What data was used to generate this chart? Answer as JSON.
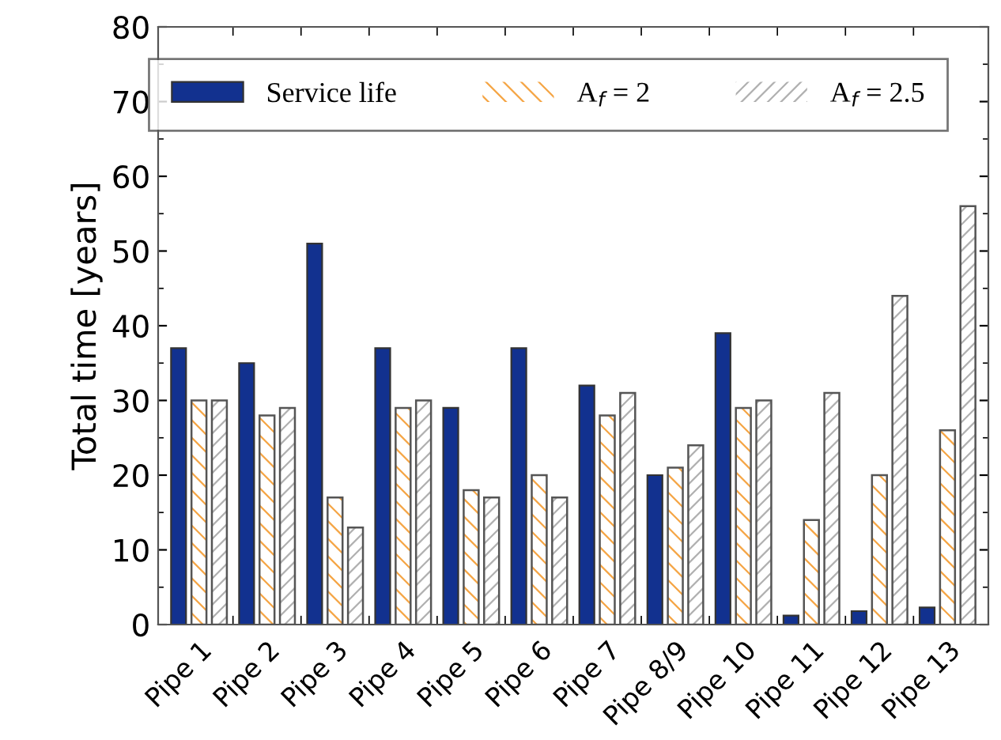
{
  "chart_data": {
    "type": "bar",
    "ylabel": "Total time [years]",
    "categories": [
      "Pipe 1",
      "Pipe 2",
      "Pipe 3",
      "Pipe 4",
      "Pipe 5",
      "Pipe 6",
      "Pipe 7",
      "Pipe 8/9",
      "Pipe 10",
      "Pipe 11",
      "Pipe 12",
      "Pipe 13"
    ],
    "series": [
      {
        "name": "Service life",
        "color": "#12318f",
        "values": [
          37,
          35,
          51,
          37,
          29,
          37,
          32,
          20,
          39,
          1.2,
          1.8,
          2.3
        ]
      },
      {
        "name": "A$_{f}$ = 2",
        "color": "#f5a544",
        "values": [
          30,
          28,
          17,
          29,
          18,
          20,
          28,
          21,
          29,
          14,
          20,
          26
        ]
      },
      {
        "name": "A$_{f}$ = 2.5",
        "color": "#b0b0b0",
        "values": [
          30,
          29,
          13,
          30,
          17,
          17,
          31,
          24,
          30,
          31,
          44,
          56
        ]
      }
    ],
    "ylim": [
      0,
      80
    ],
    "yticks": [
      0,
      10,
      20,
      30,
      40,
      50,
      60,
      70,
      80
    ],
    "grid": false,
    "legend": "top"
  }
}
